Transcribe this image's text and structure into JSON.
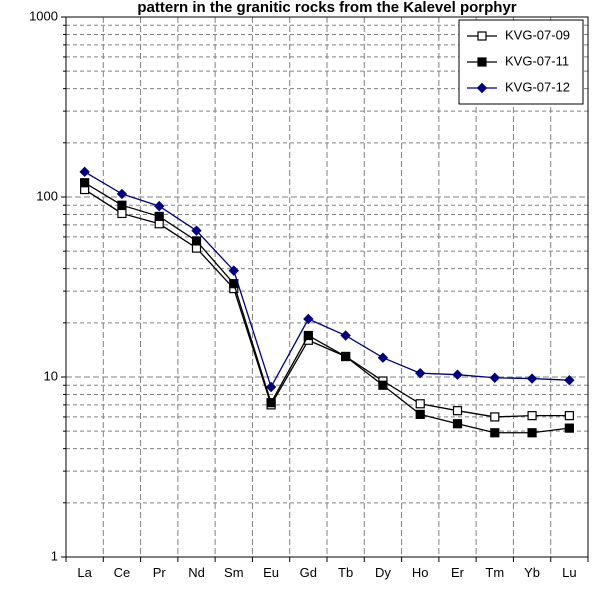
{
  "chart_data": {
    "type": "line",
    "title": "pattern in the granitic rocks from the Kalevel porphyr",
    "xlabel": "",
    "ylabel": "",
    "y_scale": "log",
    "ylim": [
      1,
      1000
    ],
    "y_ticks": [
      "1",
      "10",
      "100",
      "1000"
    ],
    "grid": true,
    "legend_position": "top-right",
    "categories": [
      "La",
      "Ce",
      "Pr",
      "Nd",
      "Sm",
      "Eu",
      "Gd",
      "Tb",
      "Dy",
      "Ho",
      "Er",
      "Tm",
      "Yb",
      "Lu"
    ],
    "series": [
      {
        "name": "KVG-07-09",
        "color": "#000000",
        "marker": "square-open",
        "values": [
          110,
          81,
          71,
          52,
          31,
          7,
          16,
          13,
          9.5,
          7.1,
          6.5,
          6.0,
          6.1,
          6.1
        ]
      },
      {
        "name": "KVG-07-11",
        "color": "#000000",
        "marker": "square-filled",
        "values": [
          120,
          90,
          78,
          57,
          33,
          7.2,
          17,
          13,
          9.0,
          6.2,
          5.5,
          4.9,
          4.9,
          5.2
        ]
      },
      {
        "name": "KVG-07-12",
        "color": "#000080",
        "marker": "diamond-filled",
        "values": [
          138,
          104,
          89,
          65,
          39,
          8.8,
          21,
          17,
          12.8,
          10.5,
          10.3,
          9.9,
          9.8,
          9.6
        ]
      }
    ]
  }
}
